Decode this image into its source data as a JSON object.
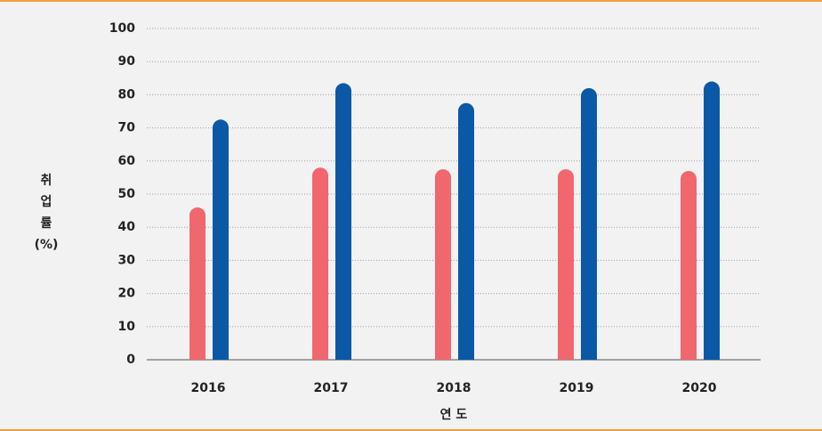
{
  "chart_data": {
    "type": "bar",
    "categories": [
      "2016",
      "2017",
      "2018",
      "2019",
      "2020"
    ],
    "series": [
      {
        "color": "#f0676e",
        "values": [
          46,
          58,
          57.5,
          57.5,
          57
        ]
      },
      {
        "color": "#0b58a6",
        "values": [
          72.5,
          83.5,
          77.5,
          82,
          84
        ]
      }
    ],
    "ylim": [
      0,
      100
    ],
    "yticks": [
      0,
      10,
      20,
      30,
      40,
      50,
      60,
      70,
      80,
      90,
      100
    ],
    "grid": true,
    "ylabel": [
      "취",
      "업",
      "률",
      "(%)"
    ],
    "xlabel": "연 도"
  }
}
